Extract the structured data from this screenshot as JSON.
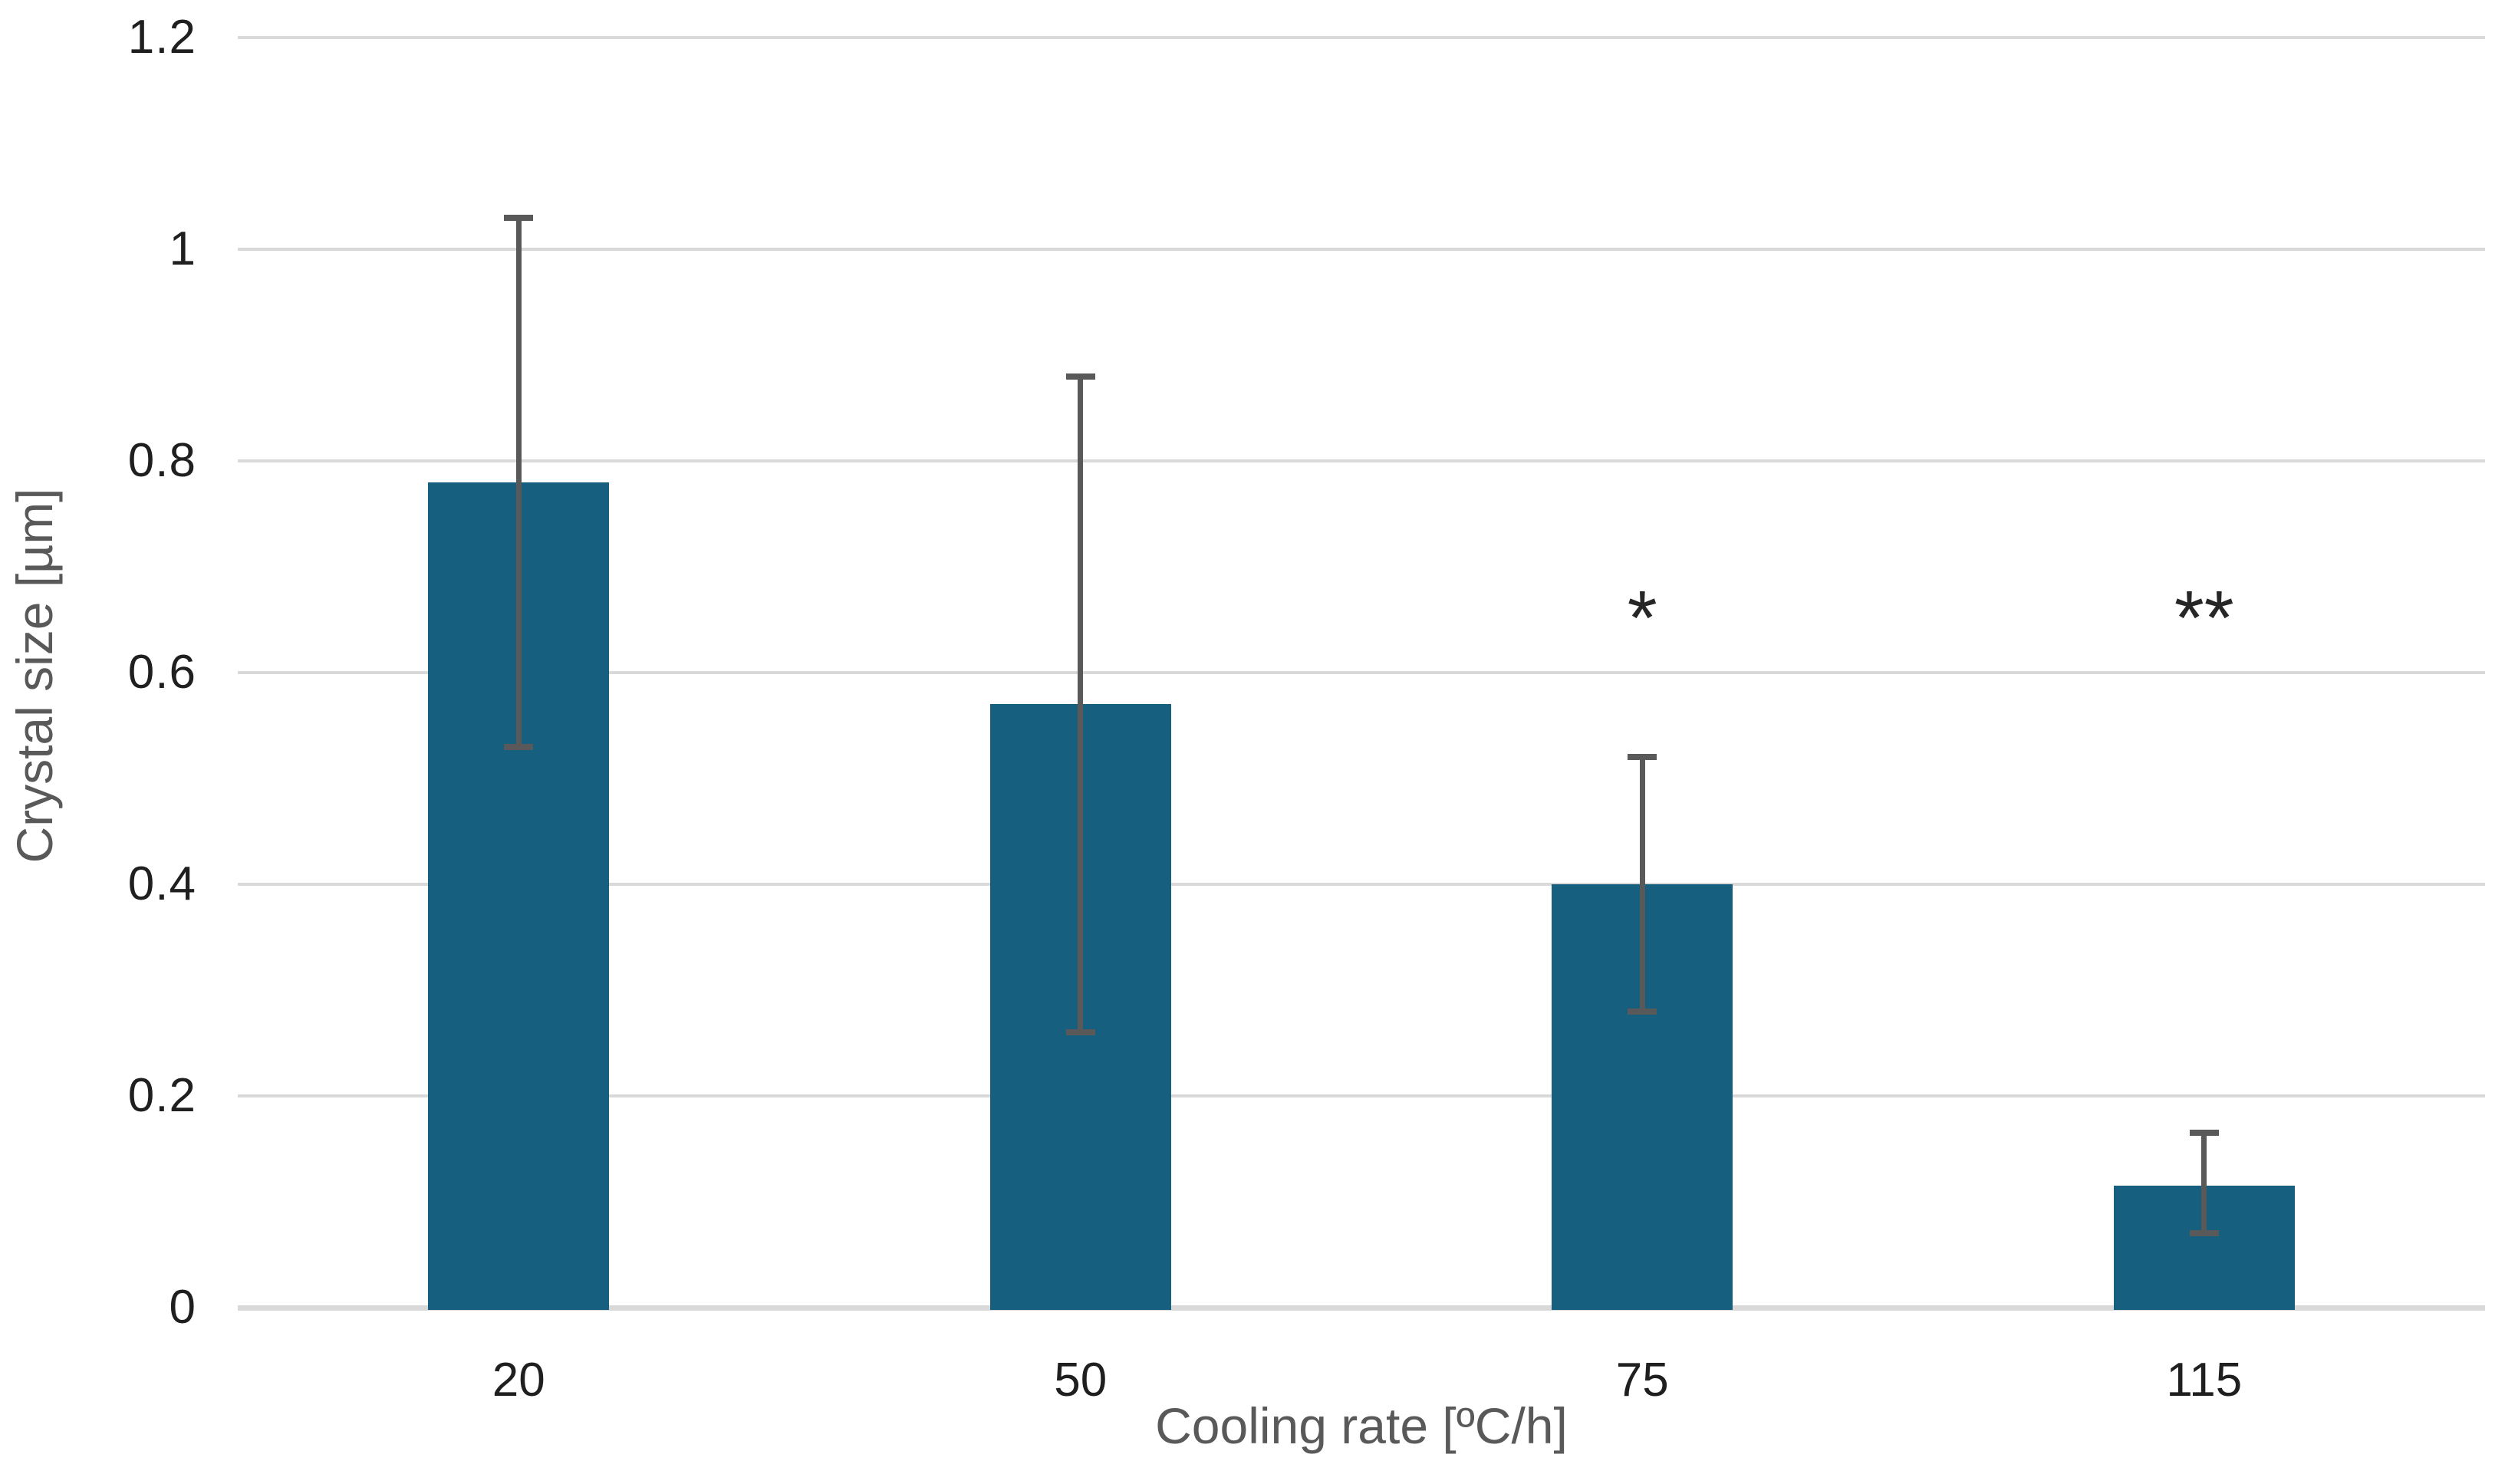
{
  "chart_data": {
    "type": "bar",
    "title": "",
    "xlabel": "Cooling rate [ºC/h]",
    "ylabel": "Crystal size [µm]",
    "categories": [
      "20",
      "50",
      "75",
      "115"
    ],
    "values": [
      0.78,
      0.57,
      0.4,
      0.115
    ],
    "error_low": [
      0.53,
      0.26,
      0.28,
      0.07
    ],
    "error_high": [
      1.03,
      0.88,
      0.52,
      0.165
    ],
    "annotations": [
      {
        "category": "75",
        "text": "*",
        "y": 0.66
      },
      {
        "category": "115",
        "text": "**",
        "y": 0.66
      }
    ],
    "ylim": [
      0,
      1.2
    ],
    "ytick_values": [
      0,
      0.2,
      0.4,
      0.6,
      0.8,
      1,
      1.2
    ],
    "ytick_labels": [
      "0",
      "0.2",
      "0.4",
      "0.6",
      "0.8",
      "1",
      "1.2"
    ],
    "grid": true,
    "legend": "none",
    "bar_color": "#175f7f",
    "error_bar_color": "#595959",
    "gridline_color": "#d9d9d9",
    "tick_label_color": "#1f1f1f",
    "axis_title_color": "#595959",
    "background_color": "#ffffff"
  }
}
